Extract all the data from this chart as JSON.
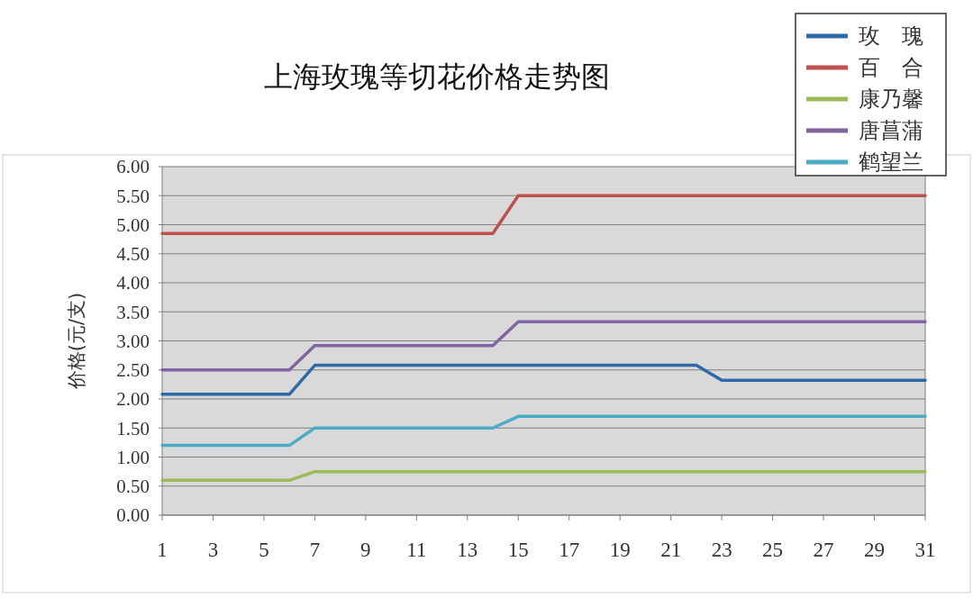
{
  "chart_data": {
    "type": "line",
    "title": "上海玫瑰等切花价格走势图",
    "ylabel": "价格(元/支)",
    "xlim": [
      1,
      31
    ],
    "xticks": [
      1,
      3,
      5,
      7,
      9,
      11,
      13,
      15,
      17,
      19,
      21,
      23,
      25,
      27,
      29,
      31
    ],
    "ylim": [
      0,
      6
    ],
    "yticks": [
      {
        "value": 0,
        "label": "0.00"
      },
      {
        "value": 0.5,
        "label": "0.50"
      },
      {
        "value": 1,
        "label": "1.00"
      },
      {
        "value": 1.5,
        "label": "1.50"
      },
      {
        "value": 2,
        "label": "2.00"
      },
      {
        "value": 2.5,
        "label": "2.50"
      },
      {
        "value": 3,
        "label": "3.00"
      },
      {
        "value": 3.5,
        "label": "3.50"
      },
      {
        "value": 4,
        "label": "4.00"
      },
      {
        "value": 4.5,
        "label": "4.50"
      },
      {
        "value": 5,
        "label": "5.00"
      },
      {
        "value": 5.5,
        "label": "5.50"
      },
      {
        "value": 6,
        "label": "6.00"
      }
    ],
    "grid": "y",
    "legend": "top right",
    "marker": "none",
    "line_style": "solid",
    "series": [
      {
        "name": "玫 瑰",
        "color": "#2e6aa8",
        "x": [
          1,
          6,
          7,
          22,
          23,
          31
        ],
        "values": [
          2.08,
          2.08,
          2.58,
          2.58,
          2.32,
          2.32
        ]
      },
      {
        "name": "百 合",
        "color": "#c0504d",
        "x": [
          1,
          14,
          15,
          31
        ],
        "values": [
          4.85,
          4.85,
          5.5,
          5.5
        ]
      },
      {
        "name": "康乃馨",
        "color": "#9bbb59",
        "x": [
          1,
          6,
          7,
          31
        ],
        "values": [
          0.6,
          0.6,
          0.75,
          0.75
        ]
      },
      {
        "name": "唐菖蒲",
        "color": "#8064a2",
        "x": [
          1,
          6,
          7,
          14,
          15,
          31
        ],
        "values": [
          2.5,
          2.5,
          2.92,
          2.92,
          3.33,
          3.33
        ]
      },
      {
        "name": "鹤望兰",
        "color": "#4bacc6",
        "x": [
          1,
          6,
          7,
          14,
          15,
          31
        ],
        "values": [
          1.2,
          1.2,
          1.5,
          1.5,
          1.7,
          1.7
        ]
      }
    ]
  }
}
